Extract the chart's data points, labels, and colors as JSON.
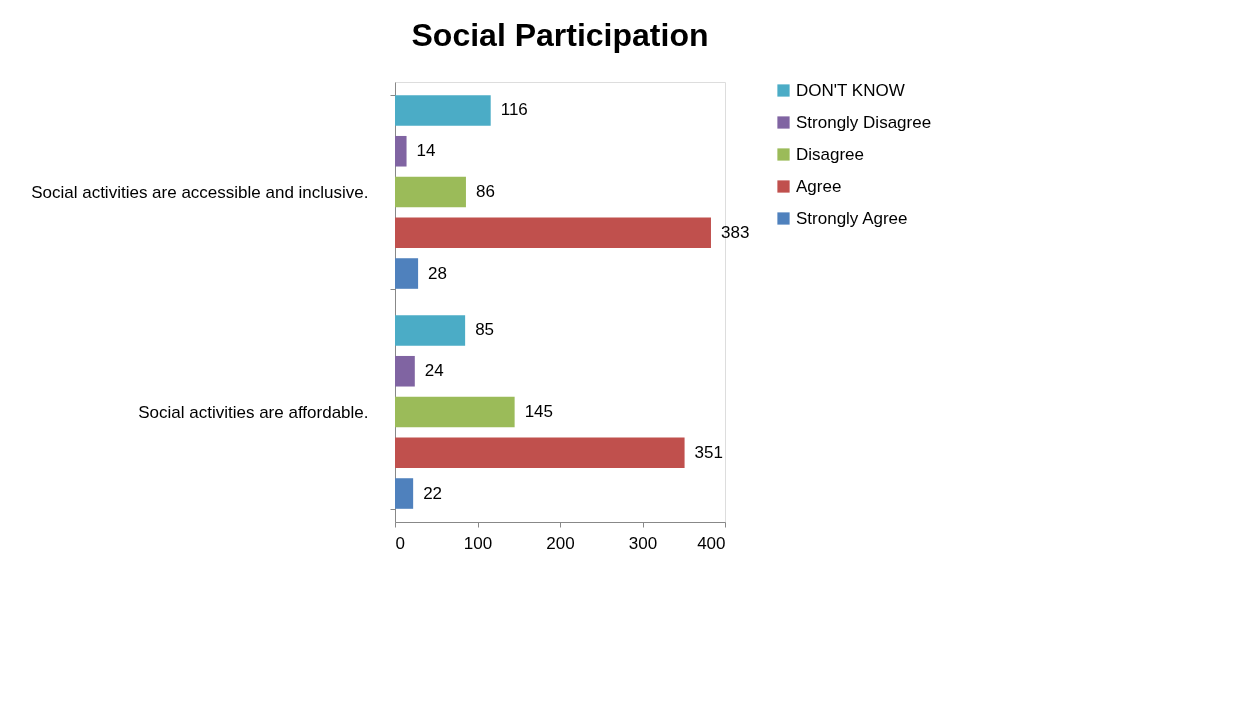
{
  "chart_data": {
    "type": "bar",
    "orientation": "horizontal",
    "title": "Social Participation",
    "categories": [
      "Social activities are accessible and inclusive.",
      "Social activities are affordable."
    ],
    "series": [
      {
        "name": "DON'T KNOW",
        "color": "#4bacc6",
        "values": [
          116,
          85
        ]
      },
      {
        "name": "Strongly Disagree",
        "color": "#8064a2",
        "values": [
          14,
          24
        ]
      },
      {
        "name": "Disagree",
        "color": "#9bbb59",
        "values": [
          86,
          145
        ]
      },
      {
        "name": "Agree",
        "color": "#c0504d",
        "values": [
          383,
          351
        ]
      },
      {
        "name": "Strongly Agree",
        "color": "#4f81bd",
        "values": [
          28,
          22
        ]
      }
    ],
    "xlim": [
      0,
      400
    ],
    "xticks": [
      0,
      100,
      200,
      300,
      400
    ],
    "grid": false,
    "legend": "right",
    "data_labels": true
  }
}
